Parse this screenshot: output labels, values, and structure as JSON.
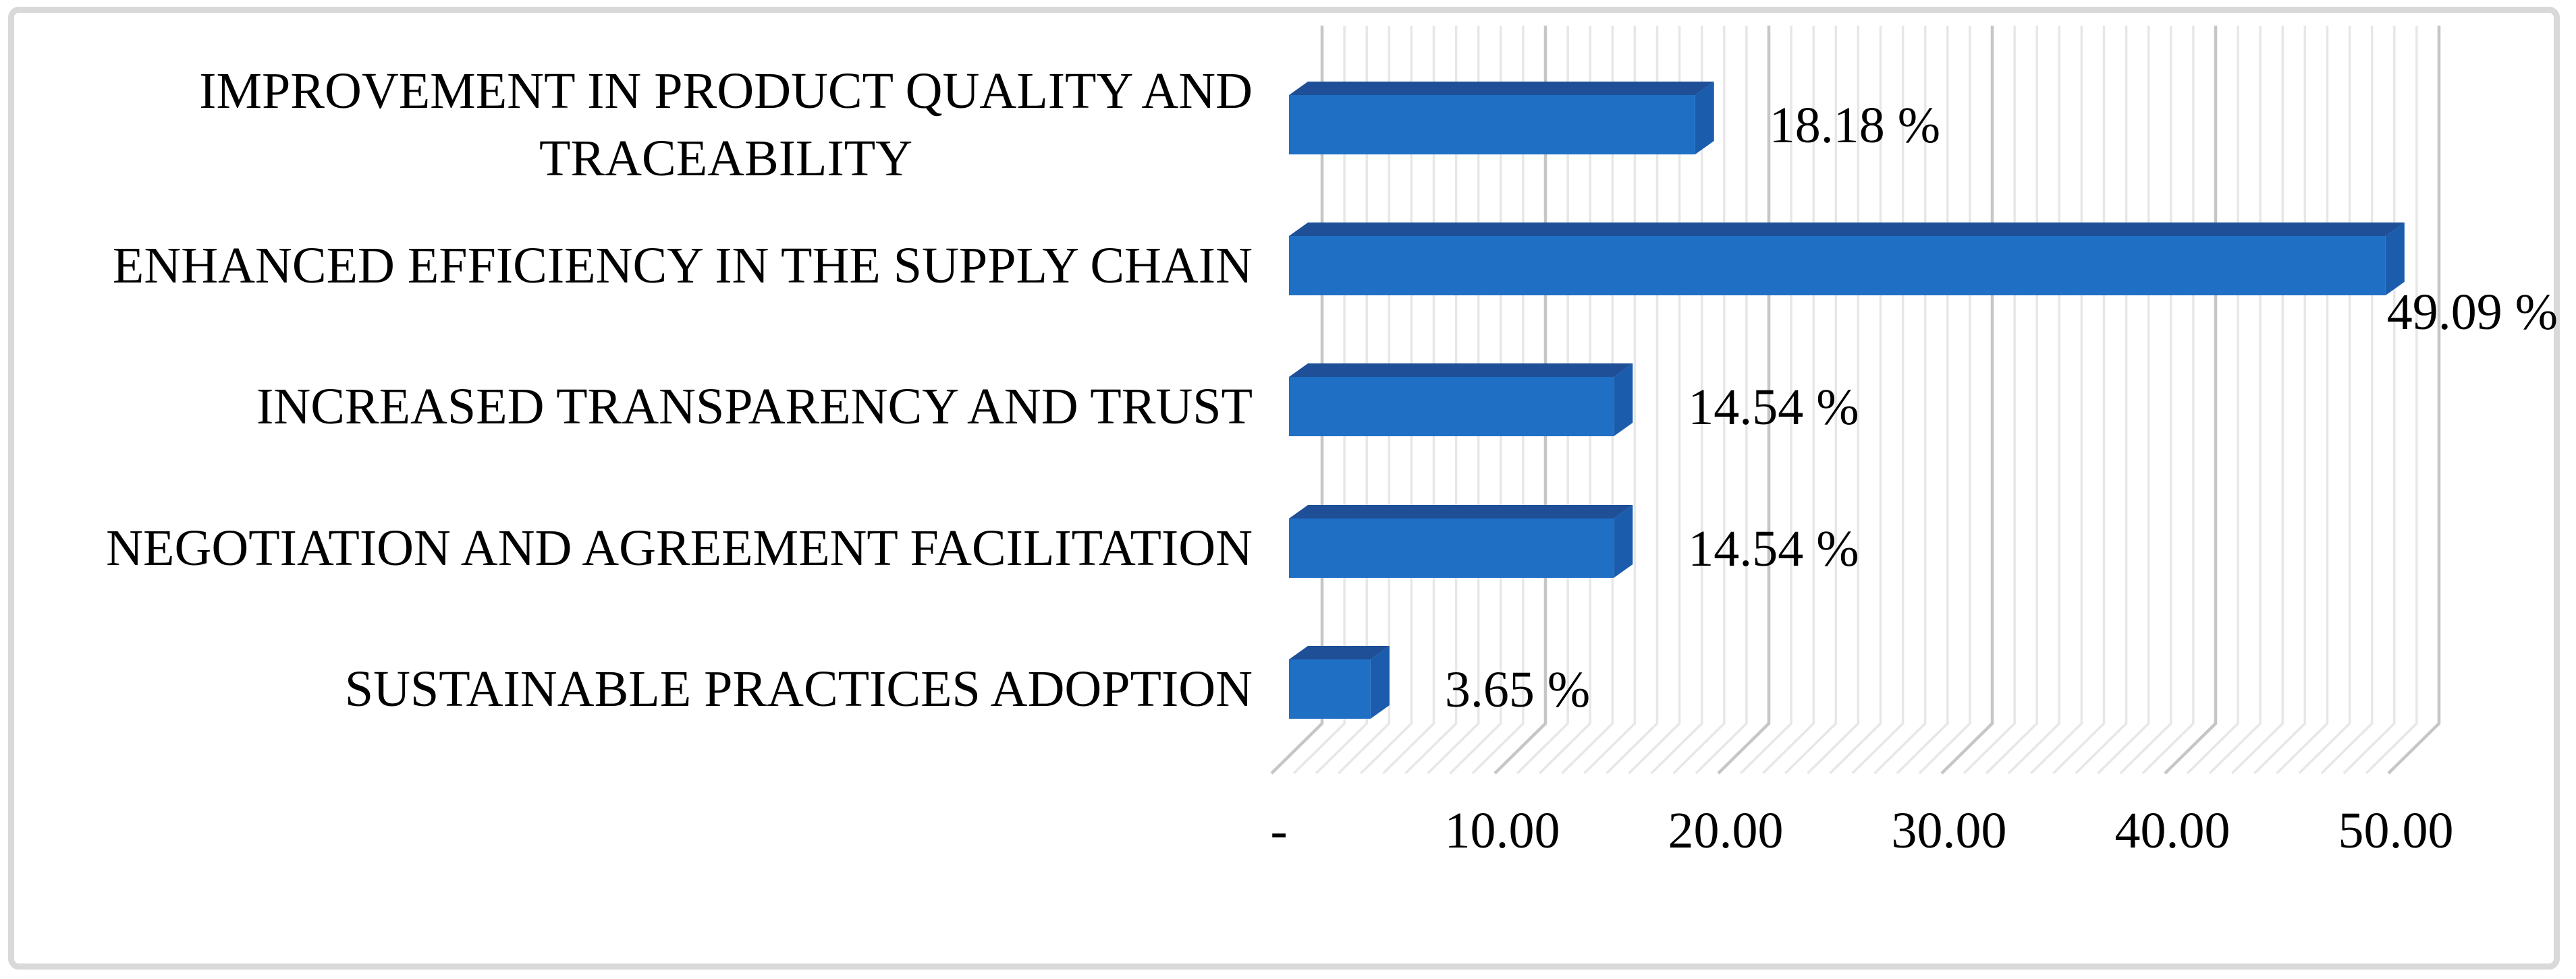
{
  "figure": {
    "background_color": "#ffffff",
    "border_color": "#d9d9d9"
  },
  "chart_data": {
    "type": "bar",
    "orientation": "horizontal",
    "style": "3d",
    "title": "",
    "xlabel": "",
    "ylabel": "",
    "categories": [
      "IMPROVEMENT IN PRODUCT QUALITY AND\nTRACEABILITY",
      "ENHANCED EFFICIENCY IN THE SUPPLY CHAIN",
      "INCREASED TRANSPARENCY AND TRUST",
      "NEGOTIATION AND AGREEMENT FACILITATION",
      "SUSTAINABLE PRACTICES ADOPTION"
    ],
    "values": [
      18.18,
      49.09,
      14.54,
      14.54,
      3.65
    ],
    "data_labels": [
      "18.18 %",
      "49.09 %",
      "14.54 %",
      "14.54 %",
      "3.65 %"
    ],
    "x_ticks": [
      {
        "label": "-",
        "value": 0
      },
      {
        "label": "10.00",
        "value": 10
      },
      {
        "label": "20.00",
        "value": 20
      },
      {
        "label": "30.00",
        "value": 30
      },
      {
        "label": "40.00",
        "value": 40
      },
      {
        "label": "50.00",
        "value": 50
      }
    ],
    "xlim": [
      0,
      55
    ],
    "major_unit": 10,
    "minor_unit": 1,
    "gridlines": "vertical-minor-and-major",
    "legend_position": "none",
    "colors": {
      "bar_front": "#1F6FC5",
      "bar_top": "#1E4F97",
      "bar_side": "#1B5CAC",
      "gridline_minor": "#e7e7e7",
      "gridline_major": "#c6c6c6",
      "label_text": "#000000"
    }
  }
}
